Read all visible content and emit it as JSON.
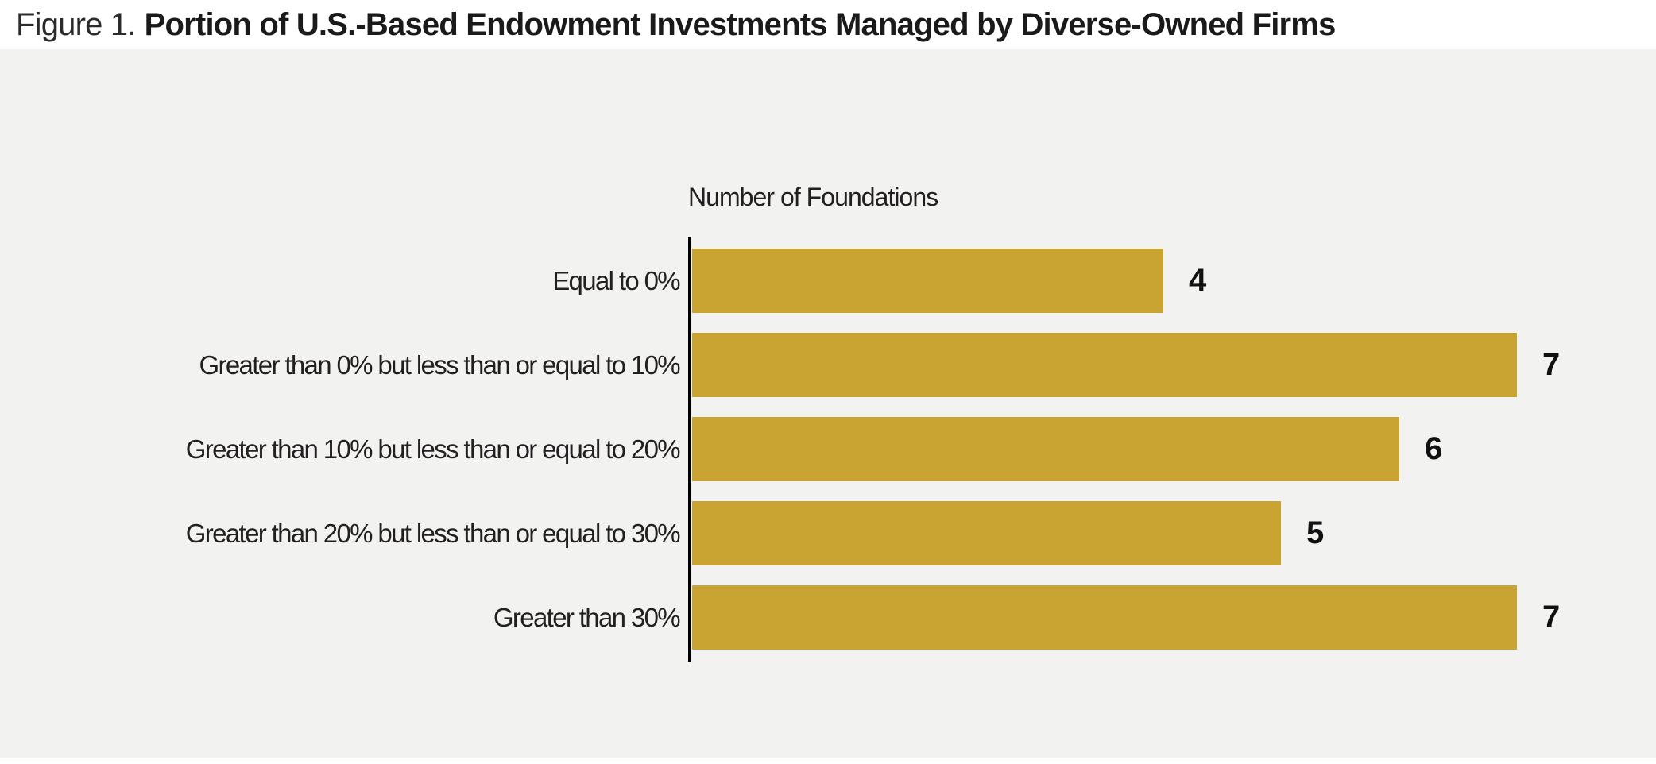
{
  "figure": {
    "label": "Figure 1.",
    "title": "Portion of U.S.-Based Endowment Investments Managed by Diverse-Owned Firms"
  },
  "chart_data": {
    "type": "bar",
    "orientation": "horizontal",
    "title": "Figure 1. Portion of U.S.-Based Endowment Investments Managed by Diverse-Owned Firms",
    "axis_title": "Number of Foundations",
    "categories": [
      "Equal to 0%",
      "Greater than 0% but less than or equal to 10%",
      "Greater than 10% but less than or equal to 20%",
      "Greater than 20% but less than or equal to 30%",
      "Greater than 30%"
    ],
    "values": [
      4,
      7,
      6,
      5,
      7
    ],
    "xlabel": "",
    "ylabel": "",
    "xlim": [
      0,
      7
    ],
    "grid": false,
    "legend": "none",
    "value_labels_shown": true
  },
  "colors": {
    "bar": "#C9A432",
    "background": "#F2F2F1",
    "title_band": "#FFFFFF",
    "text": "#231F20",
    "axis": "#000000"
  }
}
